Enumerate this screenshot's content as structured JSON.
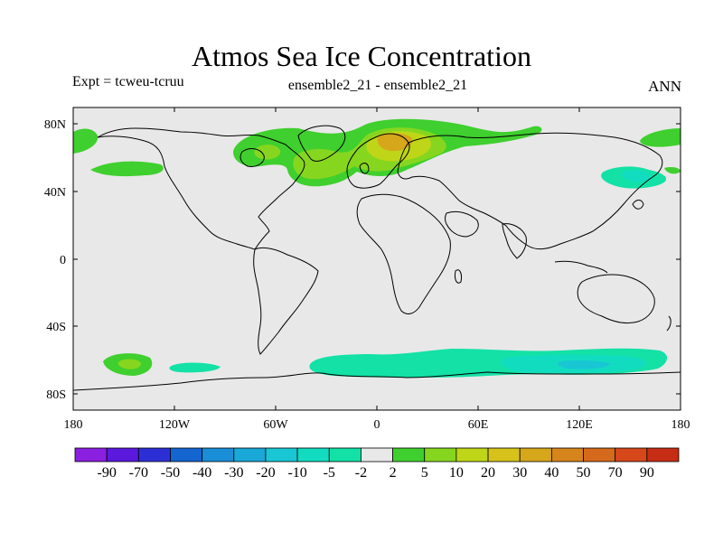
{
  "header": {
    "title": "Atmos Sea Ice Concentration",
    "experiment": "Expt = tcweu-tcruu",
    "comparison": "ensemble2_21 - ensemble2_21",
    "period": "ANN"
  },
  "axes": {
    "lat_ticks": [
      "80N",
      "40N",
      "0",
      "40S",
      "80S"
    ],
    "lon_ticks": [
      "180",
      "120W",
      "60W",
      "0",
      "60E",
      "120E",
      "180"
    ]
  },
  "colorbar": {
    "labels": [
      "-90",
      "-70",
      "-50",
      "-40",
      "-30",
      "-20",
      "-10",
      "-5",
      "-2",
      "2",
      "5",
      "10",
      "20",
      "30",
      "40",
      "50",
      "70",
      "90"
    ],
    "colors": [
      "#8b1fe0",
      "#5a19dd",
      "#2d2fd6",
      "#1565d0",
      "#1a8ed6",
      "#1aa8d8",
      "#19c6d4",
      "#12dcc0",
      "#13e1a6",
      "#e8e8e8",
      "#3fcf2e",
      "#86d61f",
      "#bed617",
      "#d6c21a",
      "#d6a61b",
      "#d6851c",
      "#d66a1c",
      "#d6481a",
      "#c62d14"
    ]
  },
  "colors": {
    "background": "#e8e8e8",
    "land_line": "#000000"
  }
}
